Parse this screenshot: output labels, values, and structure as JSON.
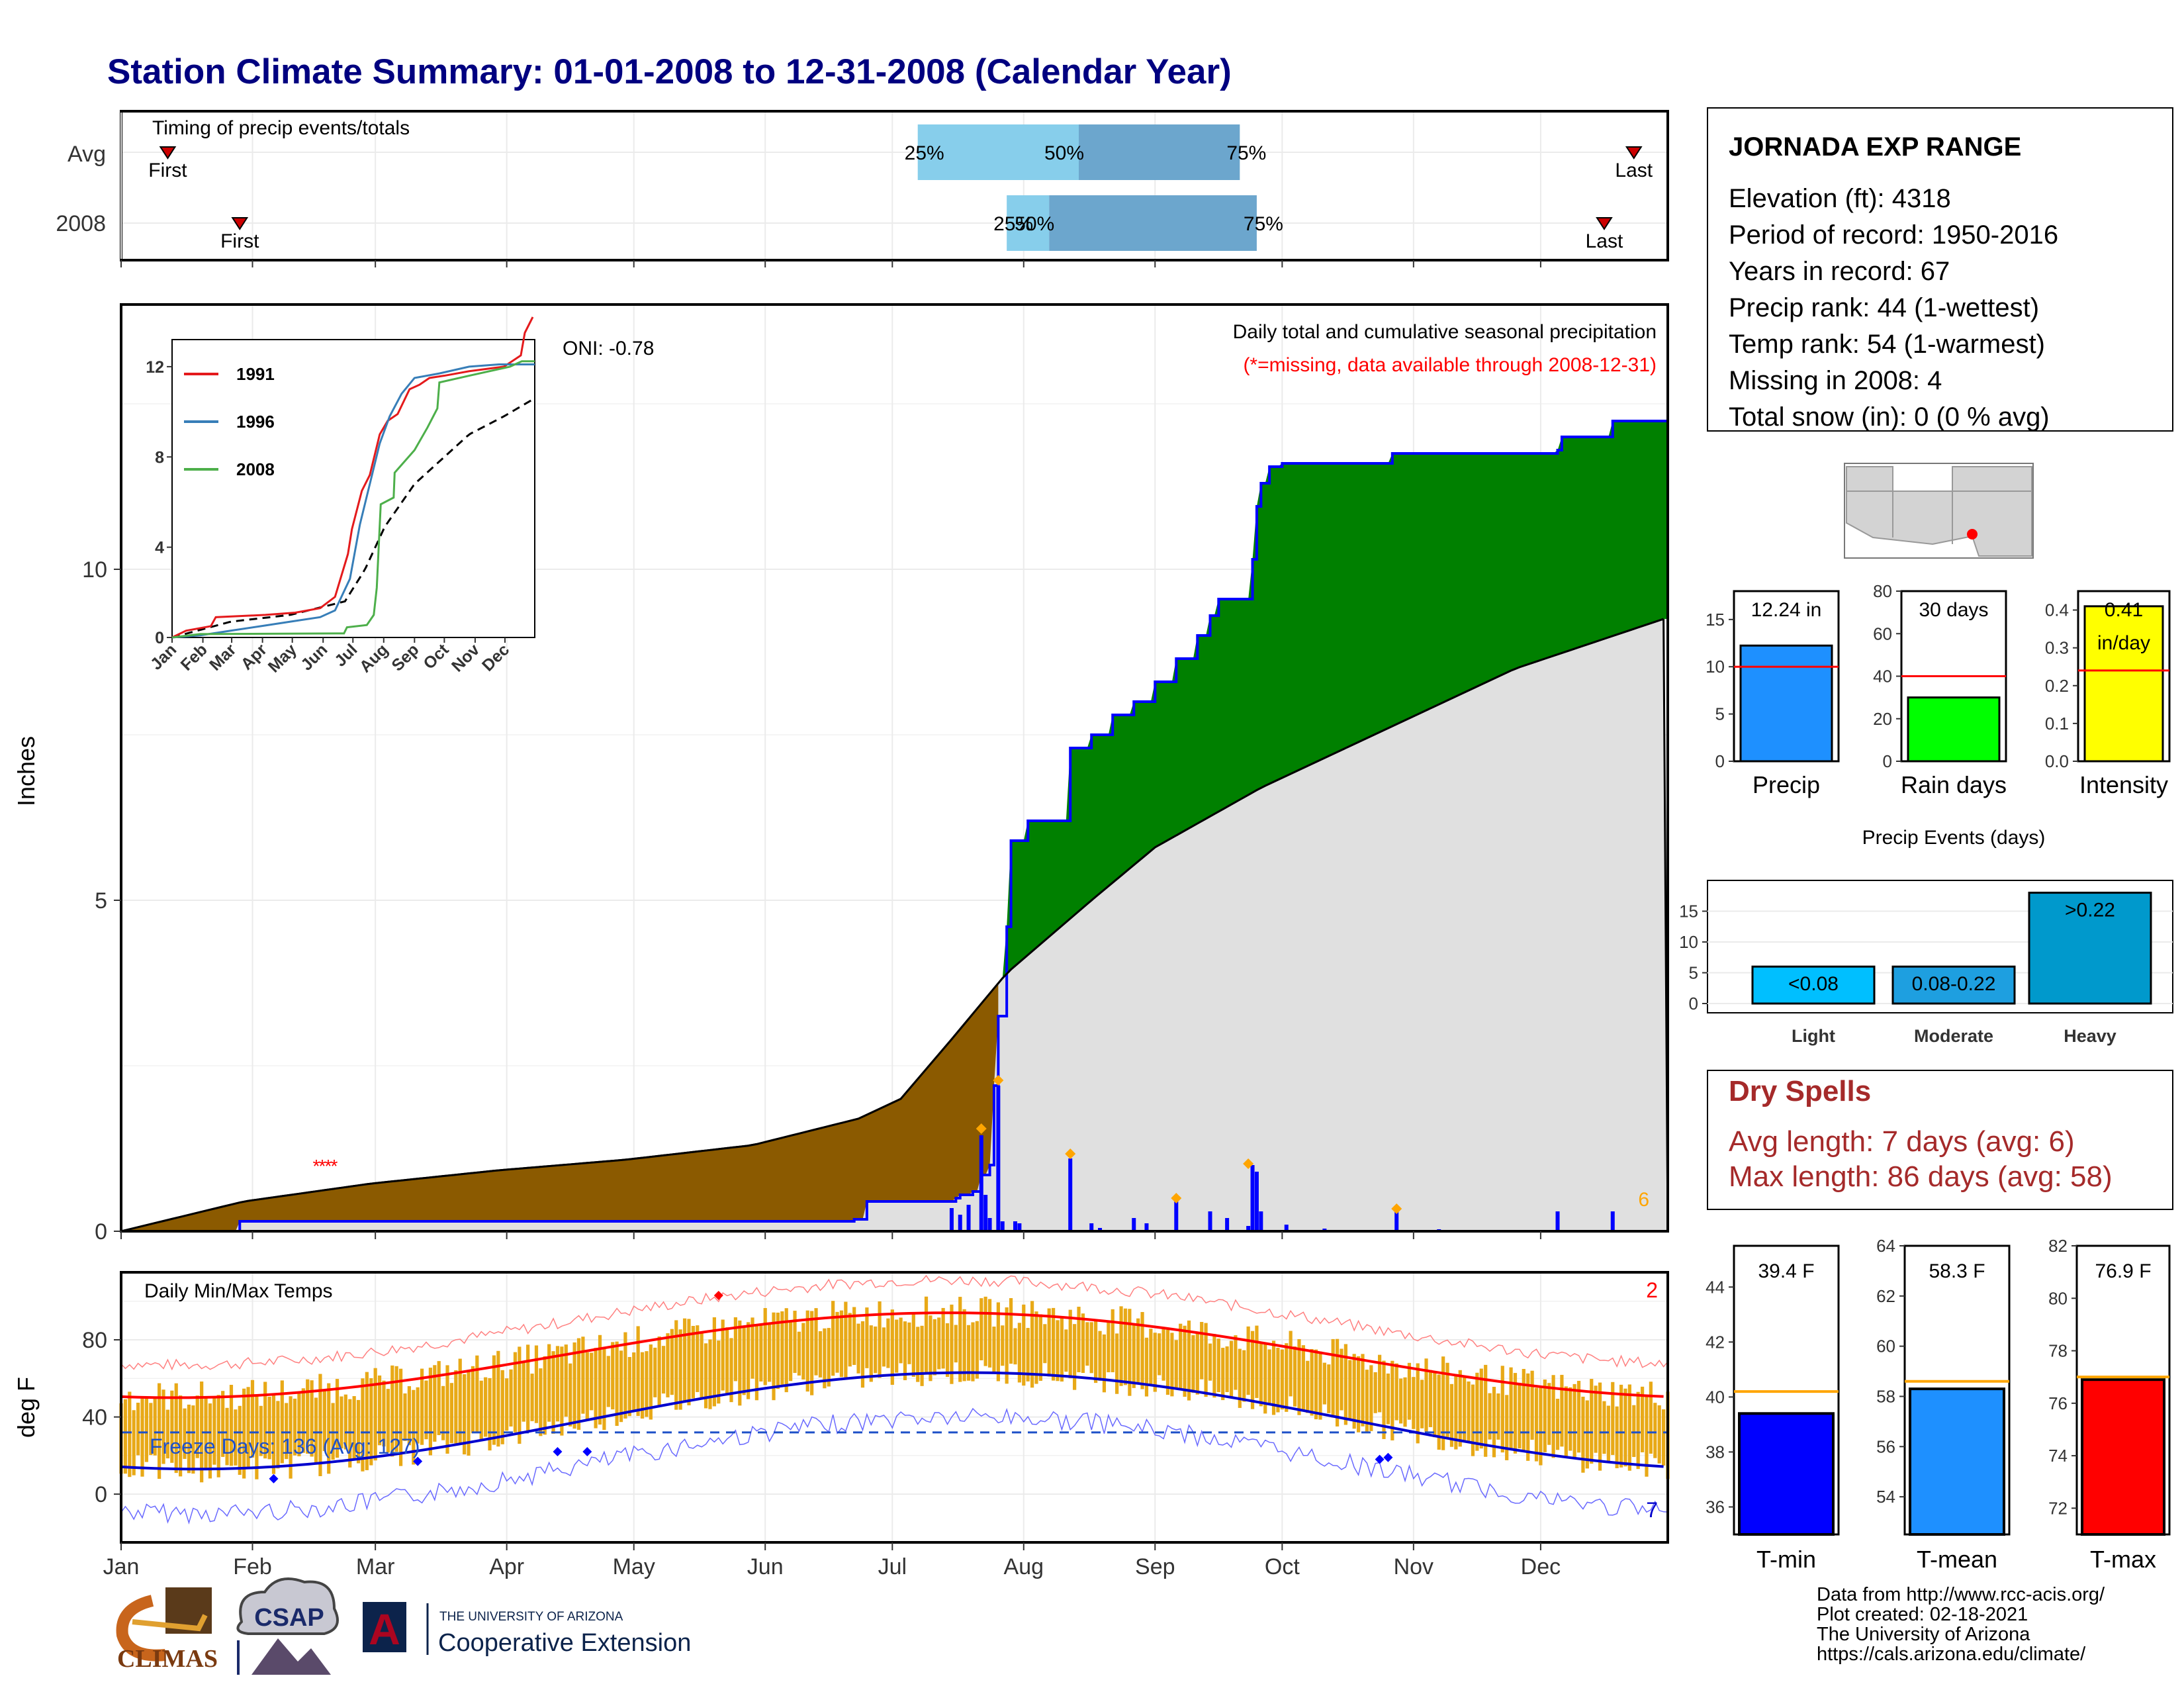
{
  "title": "Station Climate Summary: 01-01-2008 to 12-31-2008 (Calendar Year)",
  "timing": {
    "title": "Timing of precip events/totals",
    "rows": [
      {
        "label": "Avg",
        "first_label": "First",
        "last_label": "Last",
        "first_doy": 12,
        "last_doy": 358,
        "p25": 189,
        "p50": 227,
        "p75": 265
      },
      {
        "label": "2008",
        "first_label": "First",
        "last_label": "Last",
        "first_doy": 29,
        "last_doy": 351,
        "p25": 210,
        "p50": 220,
        "p75": 269
      }
    ],
    "pct_labels": [
      "25%",
      "50%",
      "75%"
    ],
    "colors": {
      "light": "#87ceeb",
      "dark": "#6ca6cd",
      "marker": "#cc0000"
    }
  },
  "station": {
    "name": "JORNADA EXP RANGE",
    "lines": [
      "Elevation (ft): 4318",
      "Period of record: 1950-2016",
      "Years in record: 67",
      "Precip rank: 44 (1-wettest)",
      "Temp rank: 54 (1-warmest)",
      "Missing in 2008: 4",
      "Total snow (in): 0 (0 % avg)"
    ]
  },
  "precip_panel": {
    "ylabel": "Inches",
    "header": "Daily total and cumulative seasonal precipitation",
    "missing_note": "(*=missing, data available through 2008-12-31)",
    "oni": "ONI: -0.78",
    "corner_count": "6",
    "month_labels": [
      "Jan",
      "Feb",
      "Mar",
      "Apr",
      "May",
      "Jun",
      "Jul",
      "Aug",
      "Sep",
      "Oct",
      "Nov",
      "Dec"
    ],
    "colors": {
      "dry": "#8b5a00",
      "wet": "#008000",
      "avg": "#e0e0e0",
      "bars": "#0000ff",
      "cum_line": "#0000ff",
      "marker": "#ffa500",
      "missing": "#ff0000"
    }
  },
  "inset": {
    "series": [
      {
        "name": "1991",
        "color": "#e41a1c"
      },
      {
        "name": "1996",
        "color": "#377eb8"
      },
      {
        "name": "2008",
        "color": "#4daf4a"
      }
    ],
    "month_labels": [
      "Jan",
      "Feb",
      "Mar",
      "Apr",
      "May",
      "Jun",
      "Jul",
      "Aug",
      "Sep",
      "Oct",
      "Nov",
      "Dec"
    ]
  },
  "mini_bars": [
    {
      "label": "Precip",
      "value_text": "12.24 in",
      "value": 12.24,
      "avg": 10,
      "ylim": [
        0,
        18
      ],
      "ticks": [
        0,
        5,
        10,
        15
      ],
      "color": "#1e90ff"
    },
    {
      "label": "Rain days",
      "value_text": "30 days",
      "value": 30,
      "avg": 40,
      "ylim": [
        0,
        80
      ],
      "ticks": [
        0,
        20,
        40,
        60,
        80
      ],
      "color": "#00ff00"
    },
    {
      "label": "Intensity",
      "value_text": "0.41",
      "value_text2": "in/day",
      "value": 0.41,
      "avg": 0.24,
      "ylim": [
        0,
        0.45
      ],
      "ticks": [
        0.0,
        0.1,
        0.2,
        0.3,
        0.4
      ],
      "color": "#ffff00"
    }
  ],
  "events": {
    "title": "Precip Events (days)",
    "ticks": [
      0,
      5,
      10,
      15
    ],
    "ylim": [
      0,
      20
    ],
    "bars": [
      {
        "cat": "Light",
        "label": "<0.08",
        "value": 6,
        "color": "#00bfff"
      },
      {
        "cat": "Moderate",
        "label": "0.08-0.22",
        "value": 6,
        "color": "#1e9fe0"
      },
      {
        "cat": "Heavy",
        "label": ">0.22",
        "value": 18,
        "color": "#0099cc"
      }
    ]
  },
  "dry_spells": {
    "title": "Dry Spells",
    "lines": [
      "Avg length: 7 days (avg: 6)",
      "Max length: 86 days (avg: 58)"
    ]
  },
  "temp_panel": {
    "ylabel": "deg F",
    "title": "Daily Min/Max Temps",
    "freeze": "Freeze Days: 136 (Avg: 127)",
    "count_hi": "2",
    "count_lo": "7",
    "ticks": [
      0,
      40,
      80
    ],
    "ylim": [
      -25,
      115
    ],
    "colors": {
      "range": "#e8a917",
      "max_avg": "#ff0000",
      "min_avg": "#0000cd",
      "record": "#ff0000",
      "freeze": "#1e50c8"
    }
  },
  "temp_bars": [
    {
      "label": "T-min",
      "value_text": "39.4 F",
      "value": 39.4,
      "avg": 40.2,
      "ylim": [
        35,
        45.5
      ],
      "ticks": [
        36,
        38,
        40,
        42,
        44
      ],
      "color": "#0000ff"
    },
    {
      "label": "T-mean",
      "value_text": "58.3 F",
      "value": 58.3,
      "avg": 58.6,
      "ylim": [
        52.5,
        64
      ],
      "ticks": [
        54,
        56,
        58,
        60,
        62,
        64
      ],
      "color": "#1e90ff"
    },
    {
      "label": "T-max",
      "value_text": "76.9 F",
      "value": 76.9,
      "avg": 77.0,
      "ylim": [
        71,
        82
      ],
      "ticks": [
        72,
        74,
        76,
        78,
        80,
        82
      ],
      "color": "#ff0000"
    }
  ],
  "credits": [
    "Data from http://www.rcc-acis.org/",
    "Plot created: 02-18-2021",
    "The University of Arizona",
    "https://cals.arizona.edu/climate/"
  ],
  "logos": {
    "climas": "CLIMAS",
    "csap": "CSAP",
    "ua_small": "THE UNIVERSITY OF ARIZONA",
    "ua_big": "Cooperative Extension",
    "ua_letter": "A"
  }
}
